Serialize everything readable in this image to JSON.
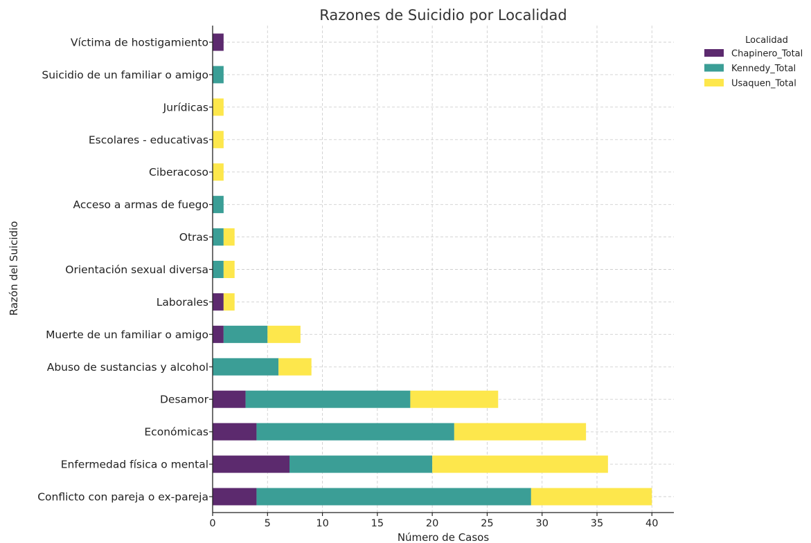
{
  "chart_data": {
    "type": "bar",
    "orientation": "horizontal",
    "stacked": true,
    "title": "Razones de Suicidio por Localidad",
    "xlabel": "Número de Casos",
    "ylabel": "Razón del Suicidio",
    "xlim": [
      0,
      42
    ],
    "xticks": [
      0,
      5,
      10,
      15,
      20,
      25,
      30,
      35,
      40
    ],
    "grid": true,
    "legend": {
      "title": "Localidad",
      "placement": "outside-top-right"
    },
    "categories": [
      "Conflicto con pareja o ex-pareja",
      "Enfermedad física o mental",
      "Económicas",
      "Desamor",
      "Abuso de sustancias y alcohol",
      "Muerte de un familiar o amigo",
      "Laborales",
      "Orientación sexual diversa",
      "Otras",
      "Acceso a armas de fuego",
      "Ciberacoso",
      "Escolares - educativas",
      "Jurídicas",
      "Suicidio de un familiar o amigo",
      "Víctima de hostigamiento"
    ],
    "series": [
      {
        "name": "Chapinero_Total",
        "color": "#5c2a6e",
        "values": [
          4,
          7,
          4,
          3,
          0,
          1,
          1,
          0,
          0,
          0,
          0,
          0,
          0,
          0,
          1
        ]
      },
      {
        "name": "Kennedy_Total",
        "color": "#3b9e96",
        "values": [
          25,
          13,
          18,
          15,
          6,
          4,
          0,
          1,
          1,
          1,
          0,
          0,
          0,
          1,
          0
        ]
      },
      {
        "name": "Usaquen_Total",
        "color": "#fde74c",
        "values": [
          11,
          16,
          12,
          8,
          3,
          3,
          1,
          1,
          1,
          0,
          1,
          1,
          1,
          0,
          0
        ]
      }
    ]
  }
}
